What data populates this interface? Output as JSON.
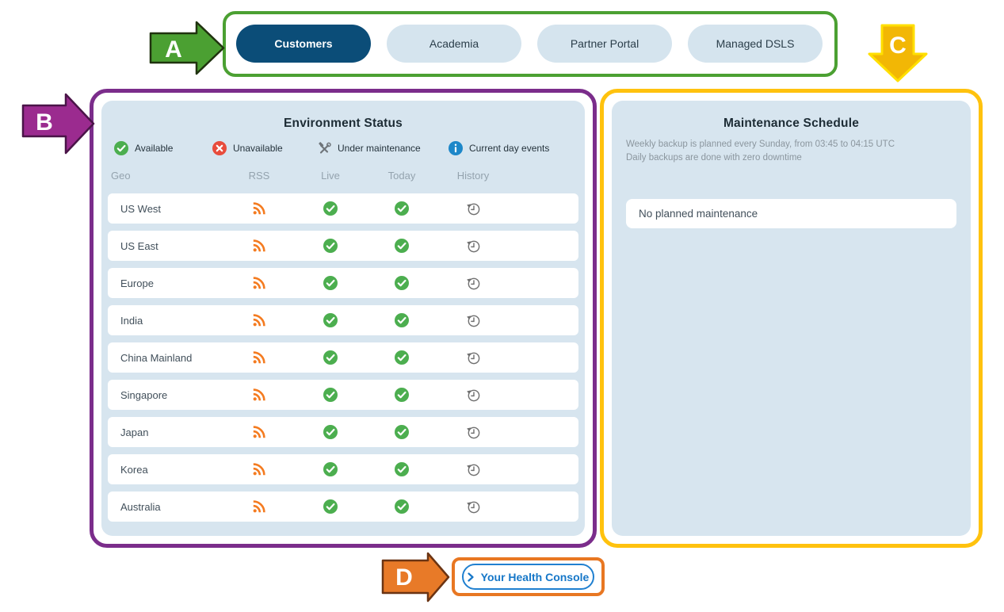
{
  "annotations": {
    "a_label": "A",
    "b_label": "B",
    "c_label": "C",
    "d_label": "D",
    "a_color": "#4ba032",
    "b_color": "#9b2b8f",
    "c_color": "#f2b705",
    "d_color": "#e87722"
  },
  "tabs": {
    "items": [
      {
        "label": "Customers",
        "active": true
      },
      {
        "label": "Academia",
        "active": false
      },
      {
        "label": "Partner Portal",
        "active": false
      },
      {
        "label": "Managed DSLS",
        "active": false
      }
    ]
  },
  "environment_status": {
    "title": "Environment Status",
    "legend": [
      {
        "icon": "available-icon",
        "label": "Available"
      },
      {
        "icon": "unavailable-icon",
        "label": "Unavailable"
      },
      {
        "icon": "maintenance-icon",
        "label": "Under maintenance"
      },
      {
        "icon": "info-icon",
        "label": "Current day events"
      }
    ],
    "columns": [
      "Geo",
      "RSS",
      "Live",
      "Today",
      "History"
    ],
    "rows": [
      {
        "geo": "US West",
        "live": "available",
        "today": "available"
      },
      {
        "geo": "US East",
        "live": "available",
        "today": "available"
      },
      {
        "geo": "Europe",
        "live": "available",
        "today": "available"
      },
      {
        "geo": "India",
        "live": "available",
        "today": "available"
      },
      {
        "geo": "China Mainland",
        "live": "available",
        "today": "available"
      },
      {
        "geo": "Singapore",
        "live": "available",
        "today": "available"
      },
      {
        "geo": "Japan",
        "live": "available",
        "today": "available"
      },
      {
        "geo": "Korea",
        "live": "available",
        "today": "available"
      },
      {
        "geo": "Australia",
        "live": "available",
        "today": "available"
      }
    ]
  },
  "maintenance": {
    "title": "Maintenance Schedule",
    "notes": [
      "Weekly backup is planned every Sunday, from 03:45 to 04:15 UTC",
      "Daily backups are done with zero downtime"
    ],
    "empty_message": "No planned maintenance"
  },
  "footer": {
    "health_console_label": "Your Health Console"
  },
  "colors": {
    "active_tab_blue": "#0b4d78",
    "tab_light_blue": "#d5e4ee",
    "panel_blue": "#d7e5ef",
    "success_green": "#4cae4f",
    "error_red": "#e84c3c",
    "rss_orange": "#f47b20",
    "info_blue": "#1d87c9",
    "link_blue": "#1677c8"
  }
}
